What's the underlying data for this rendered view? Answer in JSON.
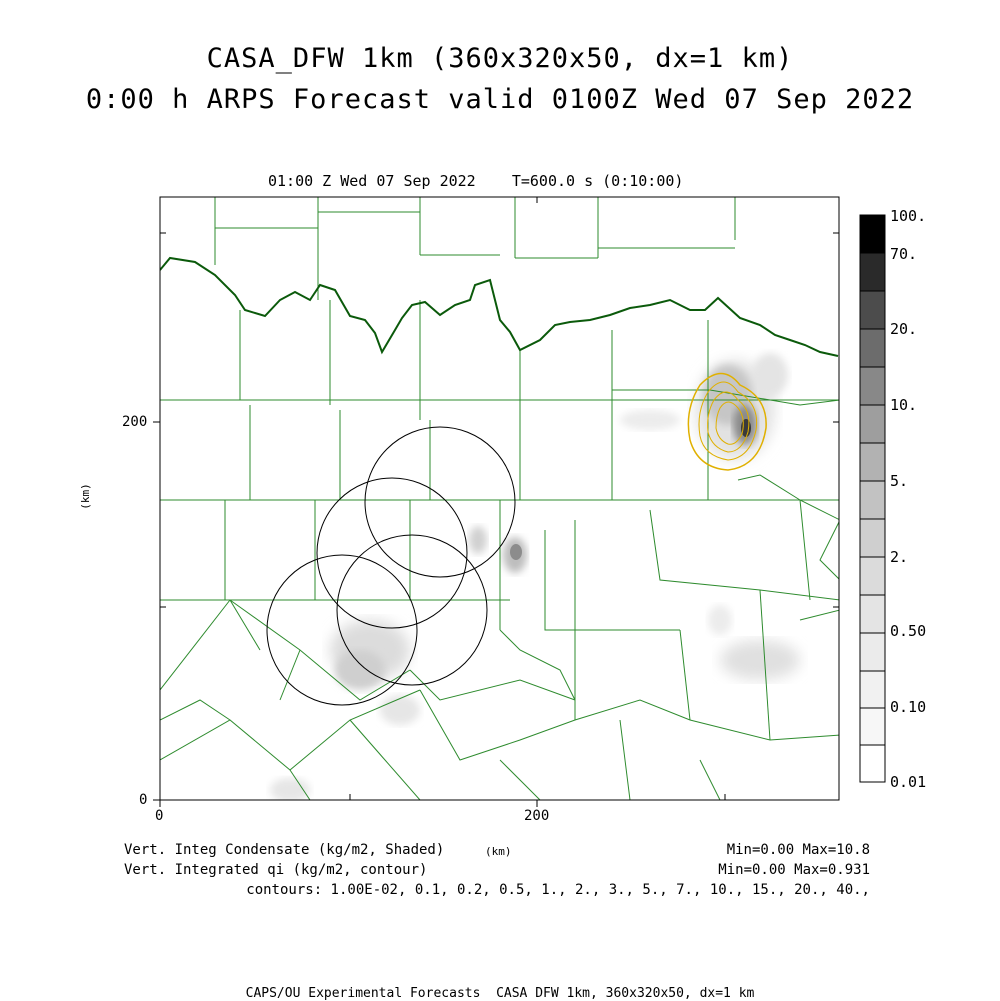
{
  "header": {
    "title_line1": "CASA_DFW 1km (360x320x50, dx=1 km)",
    "title_line2": "0:00 h ARPS Forecast valid 0100Z Wed 07 Sep 2022"
  },
  "plot": {
    "subtitle": "01:00 Z Wed 07 Sep 2022    T=600.0 s (0:10:00)",
    "y_axis_label": "(km)",
    "x_axis_label": "(km)",
    "x_ticks": [
      "0",
      "200"
    ],
    "y_ticks": [
      "0",
      "200"
    ],
    "colors": {
      "county_lines": "#2e8b2e",
      "state_border": "#0b5a0b",
      "radar_rings": "#000000",
      "qi_contours": "#e0b000"
    }
  },
  "colorbar": {
    "labels": [
      "100.",
      "70.",
      "20.",
      "10.",
      "5.",
      "2.",
      "0.50",
      "0.10",
      "0.01"
    ]
  },
  "footer": {
    "field1_label": "Vert. Integ Condensate (kg/m2, Shaded)",
    "field1_stats": "Min=0.00 Max=10.8",
    "field2_label": "Vert. Integrated qi (kg/m2, contour)",
    "field2_stats": "Min=0.00 Max=0.931",
    "contours": "contours: 1.00E-02, 0.1, 0.2, 0.5, 1., 2., 3., 5., 7., 10., 15., 20., 40.,",
    "credit": "CAPS/OU Experimental Forecasts  CASA DFW 1km, 360x320x50, dx=1 km"
  }
}
